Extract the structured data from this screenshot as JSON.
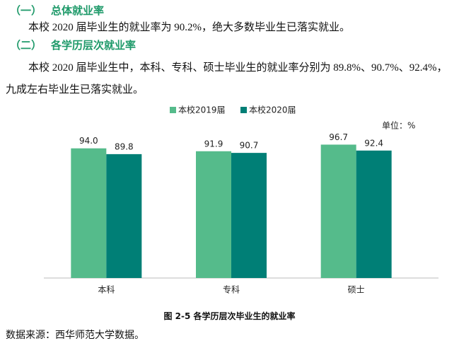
{
  "heading1": {
    "number": "（一）",
    "title": "总体就业率"
  },
  "paragraph1": "本校 2020 届毕业生的就业率为 90.2%，绝大多数毕业生已落实就业。",
  "heading2": {
    "number": "（二）",
    "title": "各学历层次就业率"
  },
  "paragraph2": {
    "line1": "本校 2020 届毕业生中，本科、专科、硕士毕业生的就业率分别为 89.8%、90.7%、92.4%，",
    "line2": "九成左右毕业生已落实就业。"
  },
  "chart_data": {
    "type": "bar",
    "unit_label": "单位：%",
    "categories": [
      "本科",
      "专科",
      "硕士"
    ],
    "series": [
      {
        "name": "本校2019届",
        "color": "#55bb8b",
        "values": [
          94.0,
          91.9,
          96.7
        ],
        "value_labels": [
          "94.0",
          "91.9",
          "96.7"
        ]
      },
      {
        "name": "本校2020届",
        "color": "#007f76",
        "values": [
          89.8,
          90.7,
          92.4
        ],
        "value_labels": [
          "89.8",
          "90.7",
          "92.4"
        ]
      }
    ],
    "ylim": [
      0,
      100
    ]
  },
  "caption": "图 2-5  各学历层次毕业生的就业率",
  "source": "数据来源：西华师范大学数据。"
}
